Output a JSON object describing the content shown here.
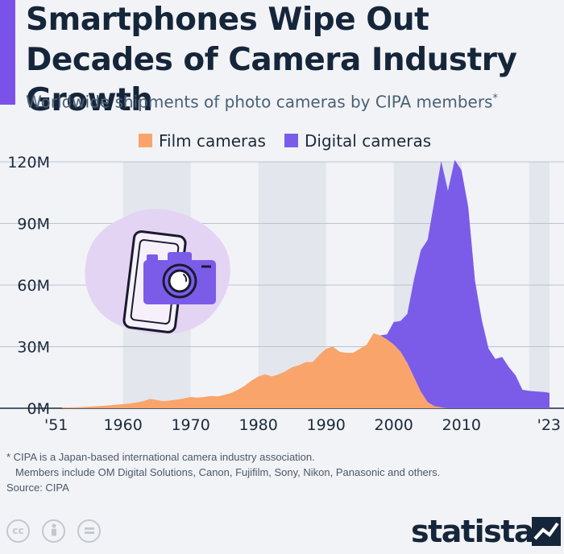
{
  "header": {
    "title": "Smartphones Wipe Out Decades of Camera Industry Growth",
    "subtitle": "Worldwide shipments of photo cameras by CIPA members",
    "subtitle_mark": "*"
  },
  "chart_data": {
    "type": "area",
    "stacked": true,
    "title": "Smartphones Wipe Out Decades of Camera Industry Growth",
    "subtitle": "Worldwide shipments of photo cameras by CIPA members*",
    "xlabel": "",
    "ylabel": "",
    "xlim": [
      1951,
      2023
    ],
    "ylim": [
      0,
      120
    ],
    "y_unit": "M",
    "y_ticks": [
      "0M",
      "30M",
      "60M",
      "90M",
      "120M"
    ],
    "y_tick_values": [
      0,
      30,
      60,
      90,
      120
    ],
    "x_ticks": [
      "'51",
      "1960",
      "1970",
      "1980",
      "1990",
      "2000",
      "2010",
      "'23"
    ],
    "x_tick_values": [
      1951,
      1960,
      1970,
      1980,
      1990,
      2000,
      2010,
      2023
    ],
    "grid": true,
    "decade_shading": true,
    "legend_position": "top",
    "series": [
      {
        "name": "Film cameras",
        "color": "#f9a46b",
        "x": [
          1951,
          1952,
          1953,
          1954,
          1955,
          1956,
          1957,
          1958,
          1959,
          1960,
          1961,
          1962,
          1963,
          1964,
          1965,
          1966,
          1967,
          1968,
          1969,
          1970,
          1971,
          1972,
          1973,
          1974,
          1975,
          1976,
          1977,
          1978,
          1979,
          1980,
          1981,
          1982,
          1983,
          1984,
          1985,
          1986,
          1987,
          1988,
          1989,
          1990,
          1991,
          1992,
          1993,
          1994,
          1995,
          1996,
          1997,
          1998,
          1999,
          2000,
          2001,
          2002,
          2003,
          2004,
          2005,
          2006,
          2007,
          2008,
          2009,
          2010,
          2011,
          2012,
          2013,
          2014,
          2015,
          2016,
          2017,
          2018,
          2019,
          2020,
          2021,
          2022,
          2023
        ],
        "values": [
          0.3,
          0.4,
          0.5,
          0.6,
          0.8,
          1.0,
          1.2,
          1.4,
          1.7,
          2.0,
          2.3,
          2.8,
          3.5,
          4.5,
          4.0,
          3.5,
          3.8,
          4.2,
          4.8,
          5.5,
          5.2,
          5.5,
          6.0,
          5.8,
          6.5,
          7.5,
          9.0,
          11.0,
          13.5,
          15.5,
          16.5,
          15.5,
          16.5,
          18.0,
          20.0,
          21.0,
          22.5,
          22.5,
          26.0,
          29.0,
          30.0,
          27.5,
          27.0,
          27.0,
          29.0,
          31.0,
          36.5,
          35.5,
          33.5,
          31.0,
          27.5,
          22.0,
          15.0,
          8.0,
          3.0,
          1.0,
          0.4,
          0,
          0,
          0,
          0,
          0,
          0,
          0,
          0,
          0,
          0,
          0,
          0,
          0,
          0,
          0,
          0
        ]
      },
      {
        "name": "Digital cameras",
        "color": "#7b5ce8",
        "x": [
          1998,
          1999,
          2000,
          2001,
          2002,
          2003,
          2004,
          2005,
          2006,
          2007,
          2008,
          2009,
          2010,
          2011,
          2012,
          2013,
          2014,
          2015,
          2016,
          2017,
          2018,
          2019,
          2020,
          2021,
          2022,
          2023
        ],
        "values": [
          0,
          2.5,
          11,
          15,
          24,
          48,
          69,
          79,
          100,
          120,
          106,
          121,
          116,
          98,
          62,
          43,
          29,
          24,
          25,
          20,
          16,
          9,
          8.5,
          8.2,
          8.0,
          7.5
        ]
      }
    ]
  },
  "footnote": {
    "line1": "* CIPA is a Japan-based international camera industry association.",
    "line2": "Members include OM Digital Solutions, Canon, Fujifilm, Sony, Nikon, Panasonic and others."
  },
  "source": "Source: CIPA",
  "license_icons": [
    {
      "name": "cc-icon",
      "glyph": "cc"
    },
    {
      "name": "attribution-icon",
      "glyph": "person"
    },
    {
      "name": "no-derivatives-icon",
      "glyph": "equals"
    }
  ],
  "brand": {
    "name": "statista"
  },
  "illustration": {
    "icon": "smartphone-camera-icon",
    "blob_color": "#e3d4f4",
    "outline_color": "#1a1a2e",
    "camera_color": "#7b5ce8"
  }
}
